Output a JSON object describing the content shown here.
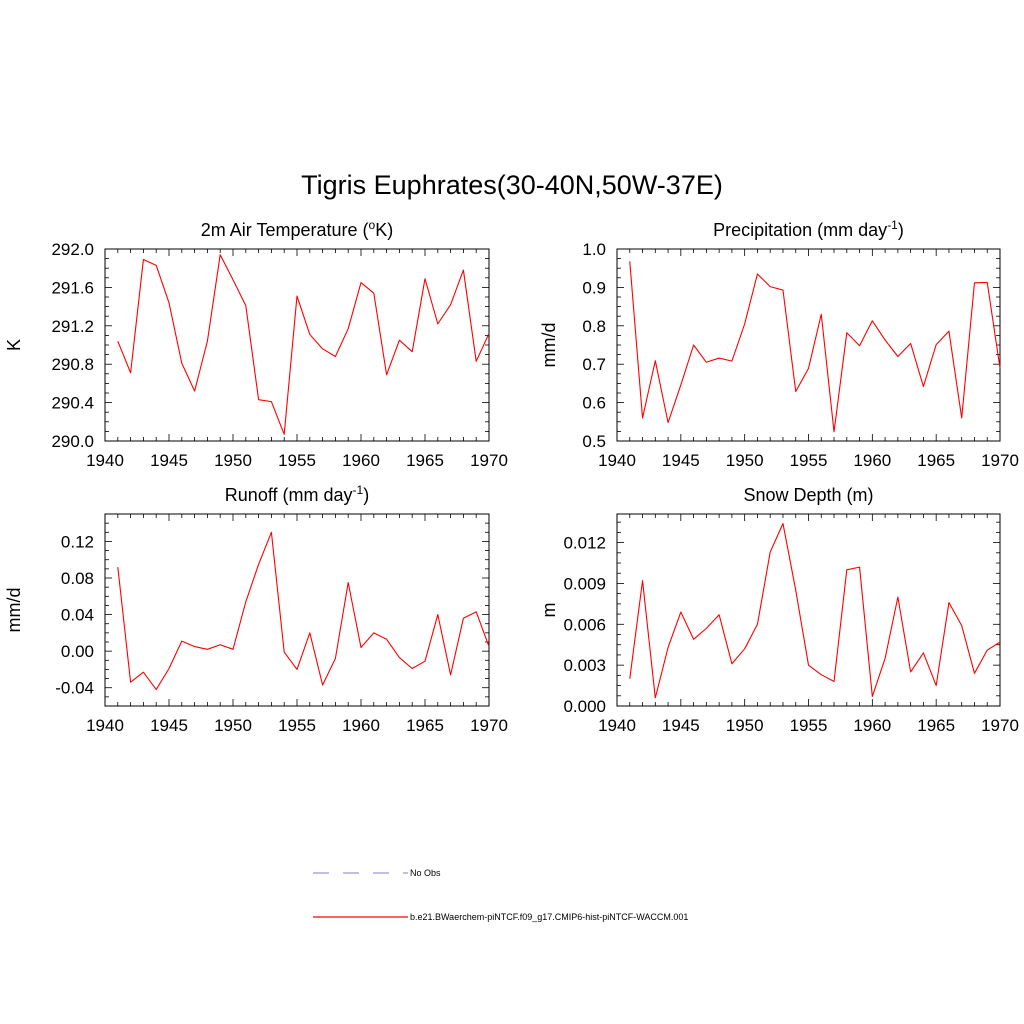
{
  "title": "Tigris Euphrates(30-40N,50W-37E)",
  "colors": {
    "model_line": "#ff0000",
    "obs_line": "#9999dd",
    "axis": "#000000"
  },
  "legend": {
    "obs_label": "No Obs",
    "model_label": "b.e21.BWaerchem-piNTCF.f09_g17.CMIP6-hist-piNTCF-WACCM.001"
  },
  "chart_data": [
    {
      "type": "line",
      "title": "2m Air Temperature (",
      "title_sup": "o",
      "title_tail": "K)",
      "title_post": "",
      "ylabel": "K",
      "xlim": [
        1940,
        1970
      ],
      "ylim": [
        290.0,
        292.0
      ],
      "x_ticks": [
        1940,
        1945,
        1950,
        1955,
        1960,
        1965,
        1970
      ],
      "y_ticks": [
        "290.0",
        "290.4",
        "290.8",
        "291.2",
        "291.6",
        "292.0"
      ],
      "x": [
        1941,
        1942,
        1943,
        1944,
        1945,
        1946,
        1947,
        1948,
        1949,
        1950,
        1951,
        1952,
        1953,
        1954,
        1955,
        1956,
        1957,
        1958,
        1959,
        1960,
        1961,
        1962,
        1963,
        1964,
        1965,
        1966,
        1967,
        1968,
        1969,
        1970
      ],
      "series": [
        {
          "values": [
            291.04,
            290.71,
            291.89,
            291.83,
            291.44,
            290.81,
            290.52,
            291.04,
            291.94,
            291.68,
            291.41,
            290.43,
            290.41,
            290.07,
            291.51,
            291.11,
            290.96,
            290.88,
            291.17,
            291.65,
            291.54,
            290.69,
            291.05,
            290.93,
            291.69,
            291.22,
            291.42,
            291.78,
            290.83,
            291.12
          ]
        }
      ]
    },
    {
      "type": "line",
      "title": "Precipitation (mm day",
      "title_sup": "-1",
      "title_tail": ")",
      "title_post": "",
      "ylabel": "mm/d",
      "xlim": [
        1940,
        1970
      ],
      "ylim": [
        0.5,
        1.0
      ],
      "x_ticks": [
        1940,
        1945,
        1950,
        1955,
        1960,
        1965,
        1970
      ],
      "y_ticks": [
        "0.5",
        "0.6",
        "0.7",
        "0.8",
        "0.9",
        "1.0"
      ],
      "x": [
        1941,
        1942,
        1943,
        1944,
        1945,
        1946,
        1947,
        1948,
        1949,
        1950,
        1951,
        1952,
        1953,
        1954,
        1955,
        1956,
        1957,
        1958,
        1959,
        1960,
        1961,
        1962,
        1963,
        1964,
        1965,
        1966,
        1967,
        1968,
        1969,
        1970
      ],
      "series": [
        {
          "values": [
            0.968,
            0.56,
            0.709,
            0.548,
            0.646,
            0.75,
            0.705,
            0.716,
            0.708,
            0.805,
            0.935,
            0.902,
            0.893,
            0.629,
            0.689,
            0.83,
            0.524,
            0.782,
            0.748,
            0.813,
            0.763,
            0.72,
            0.754,
            0.642,
            0.751,
            0.786,
            0.56,
            0.912,
            0.913,
            0.69
          ]
        }
      ]
    },
    {
      "type": "line",
      "title": "Runoff (mm day",
      "title_sup": "-1",
      "title_tail": ")",
      "title_post": "",
      "ylabel": "mm/d",
      "xlim": [
        1940,
        1970
      ],
      "ylim": [
        -0.06,
        0.15
      ],
      "x_ticks": [
        1940,
        1945,
        1950,
        1955,
        1960,
        1965,
        1970
      ],
      "y_ticks": [
        "-0.04",
        "0.00",
        "0.04",
        "0.08",
        "0.12"
      ],
      "y_tick_values": [
        -0.04,
        0.0,
        0.04,
        0.08,
        0.12
      ],
      "x": [
        1941,
        1942,
        1943,
        1944,
        1945,
        1946,
        1947,
        1948,
        1949,
        1950,
        1951,
        1952,
        1953,
        1954,
        1955,
        1956,
        1957,
        1958,
        1959,
        1960,
        1961,
        1962,
        1963,
        1964,
        1965,
        1966,
        1967,
        1968,
        1969,
        1970
      ],
      "series": [
        {
          "values": [
            0.092,
            -0.034,
            -0.023,
            -0.042,
            -0.019,
            0.011,
            0.005,
            0.002,
            0.007,
            0.002,
            0.054,
            0.095,
            0.13,
            -0.001,
            -0.02,
            0.02,
            -0.037,
            -0.008,
            0.075,
            0.004,
            0.02,
            0.013,
            -0.007,
            -0.019,
            -0.011,
            0.04,
            -0.026,
            0.036,
            0.043,
            0.005
          ]
        }
      ]
    },
    {
      "type": "line",
      "title": "Snow Depth (m)",
      "title_sup": "",
      "title_tail": "",
      "title_post": "",
      "ylabel": "m",
      "xlim": [
        1940,
        1970
      ],
      "ylim": [
        0.0,
        0.0141
      ],
      "x_ticks": [
        1940,
        1945,
        1950,
        1955,
        1960,
        1965,
        1970
      ],
      "y_ticks": [
        "0.000",
        "0.003",
        "0.006",
        "0.009",
        "0.012"
      ],
      "y_tick_values": [
        0.0,
        0.003,
        0.006,
        0.009,
        0.012
      ],
      "x": [
        1941,
        1942,
        1943,
        1944,
        1945,
        1946,
        1947,
        1948,
        1949,
        1950,
        1951,
        1952,
        1953,
        1954,
        1955,
        1956,
        1957,
        1958,
        1959,
        1960,
        1961,
        1962,
        1963,
        1964,
        1965,
        1966,
        1967,
        1968,
        1969,
        1970
      ],
      "series": [
        {
          "values": [
            0.002,
            0.0092,
            0.0006,
            0.0043,
            0.0069,
            0.0049,
            0.0057,
            0.0067,
            0.0031,
            0.0042,
            0.006,
            0.0113,
            0.0134,
            0.0085,
            0.003,
            0.0023,
            0.0018,
            0.01,
            0.0102,
            0.0007,
            0.0035,
            0.008,
            0.0025,
            0.0039,
            0.0015,
            0.0076,
            0.0059,
            0.0024,
            0.0041,
            0.0047
          ]
        }
      ]
    }
  ]
}
